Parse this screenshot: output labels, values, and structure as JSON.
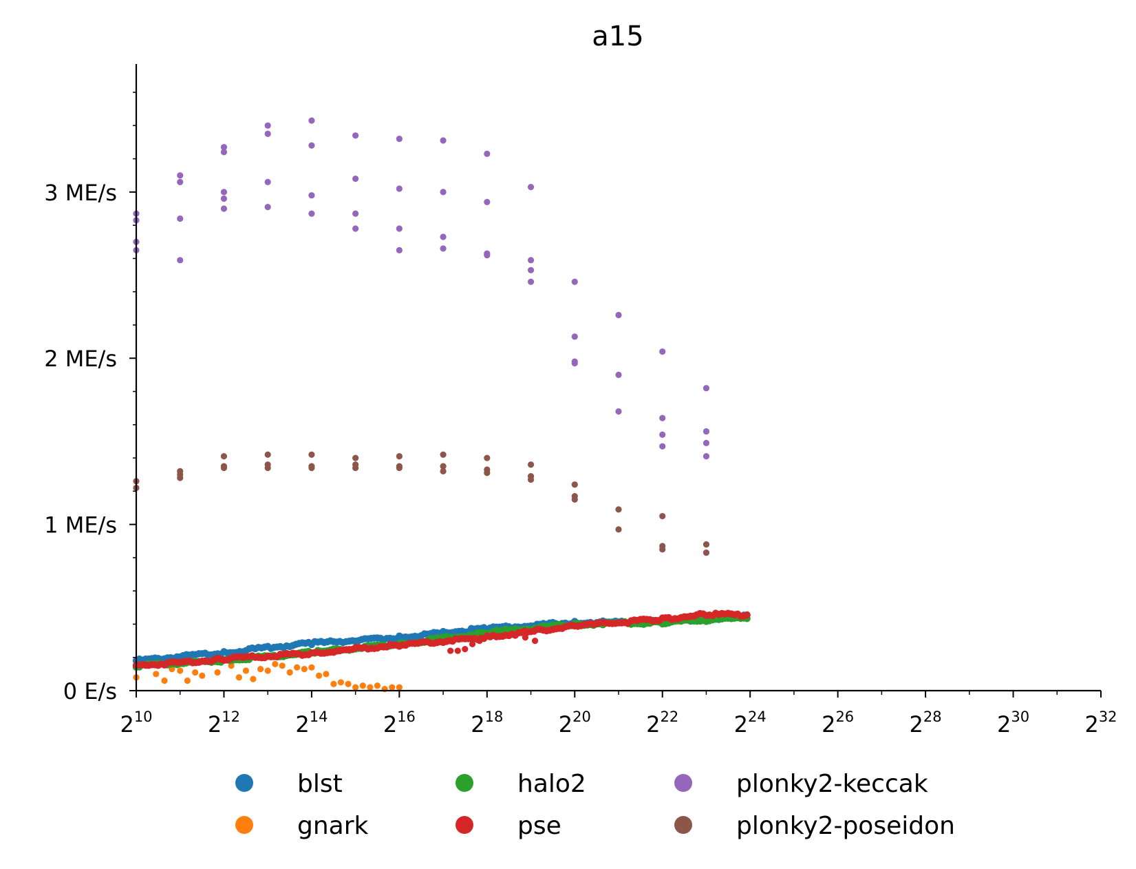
{
  "chart_data": {
    "type": "scatter",
    "title": "a15",
    "xlabel": "",
    "ylabel": "",
    "x_scale": "log2",
    "x_ticks": [
      {
        "base": "2",
        "exp": "10",
        "value": 1024
      },
      {
        "base": "2",
        "exp": "12",
        "value": 4096
      },
      {
        "base": "2",
        "exp": "14",
        "value": 16384
      },
      {
        "base": "2",
        "exp": "16",
        "value": 65536
      },
      {
        "base": "2",
        "exp": "18",
        "value": 262144
      },
      {
        "base": "2",
        "exp": "20",
        "value": 1048576
      },
      {
        "base": "2",
        "exp": "22",
        "value": 4194304
      },
      {
        "base": "2",
        "exp": "24",
        "value": 16777216
      },
      {
        "base": "2",
        "exp": "26",
        "value": 67108864
      },
      {
        "base": "2",
        "exp": "28",
        "value": 268435456
      },
      {
        "base": "2",
        "exp": "30",
        "value": 1073741824
      },
      {
        "base": "2",
        "exp": "32",
        "value": 4294967296
      }
    ],
    "xlim": [
      1024,
      4294967296
    ],
    "y_ticks": [
      {
        "label": "0 E/s",
        "value": 0
      },
      {
        "label": "1 ME/s",
        "value": 1000000
      },
      {
        "label": "2 ME/s",
        "value": 2000000
      },
      {
        "label": "3 ME/s",
        "value": 3000000
      }
    ],
    "ylim": [
      0,
      3770000
    ],
    "grid": false,
    "legend_position": "bottom",
    "legend_columns": 3,
    "series": [
      {
        "name": "blst",
        "color": "#1f77b4",
        "trend": [
          [
            1024,
            180000
          ],
          [
            4096,
            230000
          ],
          [
            16384,
            285000
          ],
          [
            65536,
            320000
          ],
          [
            262144,
            375000
          ],
          [
            1048576,
            410000
          ],
          [
            4194304,
            415000
          ],
          [
            8388608,
            430000
          ],
          [
            16777216,
            450000
          ]
        ],
        "points": []
      },
      {
        "name": "gnark",
        "color": "#ff7f0e",
        "trend": [],
        "points": [
          [
            1024,
            80000
          ],
          [
            1200,
            150000
          ],
          [
            1400,
            100000
          ],
          [
            1600,
            60000
          ],
          [
            1800,
            130000
          ],
          [
            2048,
            120000
          ],
          [
            2300,
            60000
          ],
          [
            2600,
            110000
          ],
          [
            2900,
            90000
          ],
          [
            3300,
            180000
          ],
          [
            3700,
            110000
          ],
          [
            4096,
            180000
          ],
          [
            4600,
            150000
          ],
          [
            5200,
            80000
          ],
          [
            5800,
            120000
          ],
          [
            6500,
            70000
          ],
          [
            7300,
            130000
          ],
          [
            8192,
            120000
          ],
          [
            9200,
            160000
          ],
          [
            10300,
            150000
          ],
          [
            11600,
            110000
          ],
          [
            13000,
            140000
          ],
          [
            14600,
            130000
          ],
          [
            16384,
            140000
          ],
          [
            18400,
            90000
          ],
          [
            20600,
            100000
          ],
          [
            23200,
            40000
          ],
          [
            26000,
            50000
          ],
          [
            29200,
            40000
          ],
          [
            32768,
            20000
          ],
          [
            36800,
            30000
          ],
          [
            41300,
            20000
          ],
          [
            46300,
            30000
          ],
          [
            52000,
            10000
          ],
          [
            58400,
            20000
          ],
          [
            65536,
            20000
          ]
        ]
      },
      {
        "name": "halo2",
        "color": "#2ca02c",
        "trend": [
          [
            1024,
            150000
          ],
          [
            4096,
            180000
          ],
          [
            16384,
            230000
          ],
          [
            65536,
            280000
          ],
          [
            262144,
            350000
          ],
          [
            1048576,
            400000
          ],
          [
            4194304,
            410000
          ],
          [
            16777216,
            440000
          ]
        ],
        "points": []
      },
      {
        "name": "pse",
        "color": "#d62728",
        "trend": [
          [
            1024,
            150000
          ],
          [
            4096,
            190000
          ],
          [
            16384,
            225000
          ],
          [
            65536,
            275000
          ],
          [
            262144,
            320000
          ],
          [
            1048576,
            390000
          ],
          [
            4194304,
            430000
          ],
          [
            8388608,
            460000
          ],
          [
            16777216,
            455000
          ]
        ],
        "points": [
          [
            147000,
            240000
          ],
          [
            165000,
            240000
          ],
          [
            185000,
            250000
          ],
          [
            208000,
            280000
          ],
          [
            233000,
            300000
          ],
          [
            262144,
            330000
          ],
          [
            480000,
            320000
          ],
          [
            560000,
            300000
          ]
        ]
      },
      {
        "name": "plonky2-keccak",
        "color": "#9467bd",
        "trend": [],
        "points": [
          [
            1024,
            2870000
          ],
          [
            1024,
            2830000
          ],
          [
            1024,
            2700000
          ],
          [
            1024,
            2650000
          ],
          [
            2048,
            3100000
          ],
          [
            2048,
            3060000
          ],
          [
            2048,
            2840000
          ],
          [
            2048,
            2590000
          ],
          [
            4096,
            3270000
          ],
          [
            4096,
            3240000
          ],
          [
            4096,
            3000000
          ],
          [
            4096,
            2960000
          ],
          [
            4096,
            2900000
          ],
          [
            8192,
            3400000
          ],
          [
            8192,
            3350000
          ],
          [
            8192,
            3060000
          ],
          [
            8192,
            2910000
          ],
          [
            16384,
            3430000
          ],
          [
            16384,
            3280000
          ],
          [
            16384,
            2980000
          ],
          [
            16384,
            2870000
          ],
          [
            32768,
            3340000
          ],
          [
            32768,
            3080000
          ],
          [
            32768,
            2870000
          ],
          [
            32768,
            2780000
          ],
          [
            65536,
            3320000
          ],
          [
            65536,
            3020000
          ],
          [
            65536,
            2780000
          ],
          [
            65536,
            2650000
          ],
          [
            131072,
            3310000
          ],
          [
            131072,
            3000000
          ],
          [
            131072,
            2730000
          ],
          [
            131072,
            2660000
          ],
          [
            262144,
            3230000
          ],
          [
            262144,
            2940000
          ],
          [
            262144,
            2630000
          ],
          [
            262144,
            2620000
          ],
          [
            524288,
            3030000
          ],
          [
            524288,
            2590000
          ],
          [
            524288,
            2530000
          ],
          [
            524288,
            2460000
          ],
          [
            1048576,
            2460000
          ],
          [
            1048576,
            2130000
          ],
          [
            1048576,
            1980000
          ],
          [
            1048576,
            1970000
          ],
          [
            2097152,
            2260000
          ],
          [
            2097152,
            1900000
          ],
          [
            2097152,
            1680000
          ],
          [
            4194304,
            2040000
          ],
          [
            4194304,
            1640000
          ],
          [
            4194304,
            1540000
          ],
          [
            4194304,
            1470000
          ],
          [
            8388608,
            1820000
          ],
          [
            8388608,
            1560000
          ],
          [
            8388608,
            1490000
          ],
          [
            8388608,
            1410000
          ]
        ]
      },
      {
        "name": "plonky2-poseidon",
        "color": "#8c564b",
        "trend": [],
        "points": [
          [
            1024,
            1260000
          ],
          [
            1024,
            1220000
          ],
          [
            2048,
            1320000
          ],
          [
            2048,
            1300000
          ],
          [
            2048,
            1280000
          ],
          [
            4096,
            1410000
          ],
          [
            4096,
            1350000
          ],
          [
            4096,
            1340000
          ],
          [
            8192,
            1420000
          ],
          [
            8192,
            1360000
          ],
          [
            8192,
            1340000
          ],
          [
            16384,
            1420000
          ],
          [
            16384,
            1350000
          ],
          [
            16384,
            1340000
          ],
          [
            32768,
            1400000
          ],
          [
            32768,
            1360000
          ],
          [
            32768,
            1340000
          ],
          [
            65536,
            1410000
          ],
          [
            65536,
            1350000
          ],
          [
            65536,
            1340000
          ],
          [
            131072,
            1420000
          ],
          [
            131072,
            1350000
          ],
          [
            131072,
            1320000
          ],
          [
            262144,
            1400000
          ],
          [
            262144,
            1330000
          ],
          [
            262144,
            1310000
          ],
          [
            524288,
            1360000
          ],
          [
            524288,
            1290000
          ],
          [
            524288,
            1270000
          ],
          [
            1048576,
            1240000
          ],
          [
            1048576,
            1170000
          ],
          [
            1048576,
            1150000
          ],
          [
            2097152,
            1090000
          ],
          [
            2097152,
            970000
          ],
          [
            4194304,
            1050000
          ],
          [
            4194304,
            870000
          ],
          [
            4194304,
            850000
          ],
          [
            8388608,
            880000
          ],
          [
            8388608,
            830000
          ]
        ]
      }
    ]
  }
}
